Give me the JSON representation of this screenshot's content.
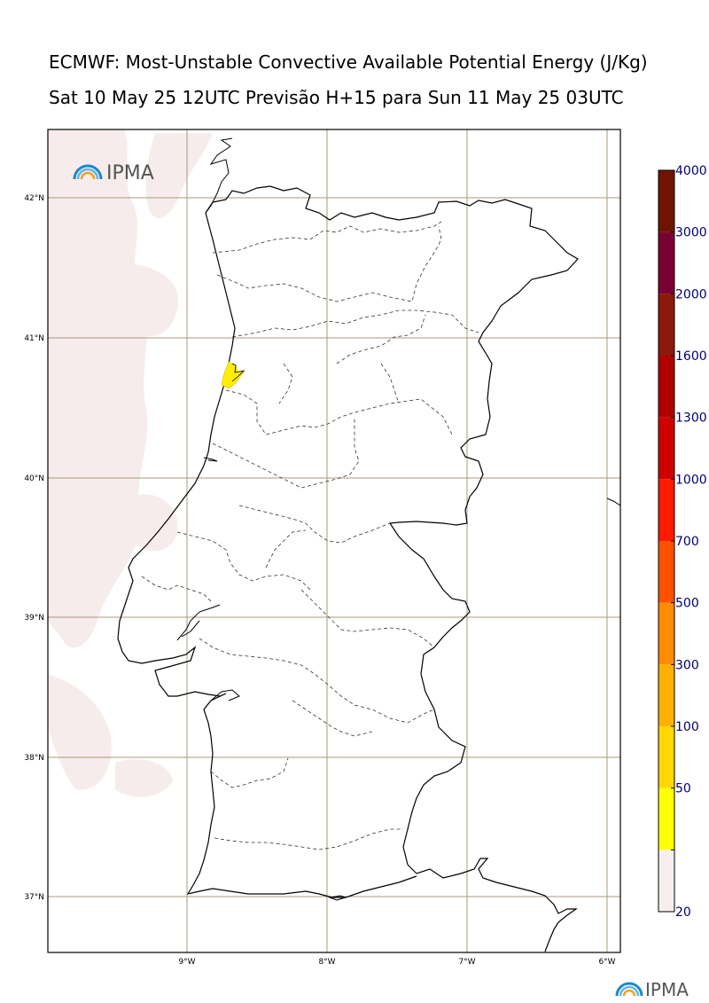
{
  "title": "ECMWF: Most-Unstable Convective Available Potential Energy (J/Kg)",
  "subtitle": "Sat 10 May 25 12UTC Previsão H+15 para Sun 11 May 25 03UTC",
  "logo_text": "IPMA",
  "lat_labels": [
    "42°N",
    "41°N",
    "40°N",
    "39°N",
    "38°N",
    "37°N"
  ],
  "lon_labels": [
    "9°W",
    "8°W",
    "7°W",
    "6°W"
  ],
  "colorbar": {
    "labels": [
      "4000",
      "3000",
      "2000",
      "1600",
      "1300",
      "1000",
      "700",
      "500",
      "300",
      "100",
      "50",
      "20"
    ],
    "colors": [
      "#6e1400",
      "#7a0033",
      "#8c1a0a",
      "#b00000",
      "#d00000",
      "#ff1a00",
      "#ff5000",
      "#ff8c00",
      "#ffb000",
      "#ffd800",
      "#ffff00",
      "#f7eeee"
    ]
  },
  "colors": {
    "low_cape_fill": "#f7ecec",
    "cape_yellow": "#ffee00",
    "grid": "#a89878",
    "logo_blue": "#1e88c8"
  }
}
